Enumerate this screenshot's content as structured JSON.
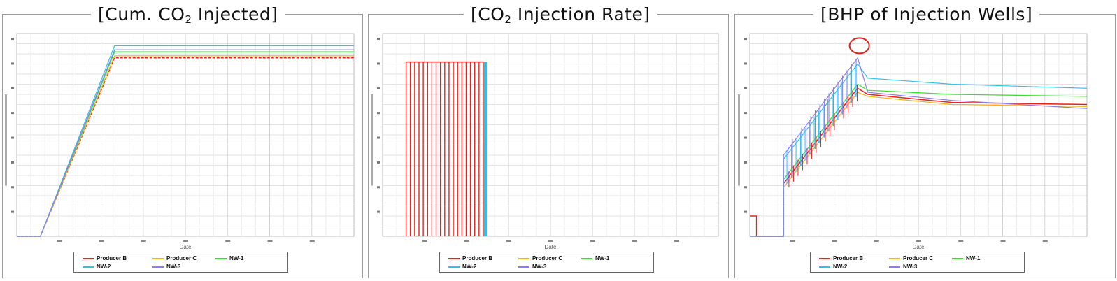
{
  "titles": [
    {
      "pre": "[Cum. CO",
      "sub": "2",
      "post": " Injected]"
    },
    {
      "pre": "[CO",
      "sub": "2",
      "post": " Injection Rate]"
    },
    {
      "pre": "[BHP of Injection Wells]",
      "sub": "",
      "post": ""
    }
  ],
  "colors": {
    "Producer B": "#e8231e",
    "Producer C": "#f7b21c",
    "NW-1": "#33e02a",
    "NW-2": "#2cc3ea",
    "NW-3": "#8a7fe8",
    "circle": "#e0211d"
  },
  "legend": {
    "items": [
      "Producer B",
      "Producer C",
      "NW-1",
      "NW-2",
      "NW-3"
    ]
  },
  "chart_data": [
    {
      "type": "line",
      "title": "[Cum. CO2 Injected]",
      "xlabel": "Date",
      "ylabel": "",
      "x_range": [
        0,
        100
      ],
      "y_range": [
        0,
        100
      ],
      "grid": true,
      "legend_position": "bottom",
      "series": [
        {
          "name": "Producer B",
          "points": [
            [
              0,
              0
            ],
            [
              7,
              0
            ],
            [
              29,
              88
            ],
            [
              100,
              88
            ]
          ]
        },
        {
          "name": "Producer C",
          "points": [
            [
              0,
              0
            ],
            [
              7,
              0
            ],
            [
              29,
              89
            ],
            [
              100,
              89
            ]
          ]
        },
        {
          "name": "NW-1",
          "points": [
            [
              0,
              0
            ],
            [
              7,
              0
            ],
            [
              29,
              91
            ],
            [
              100,
              91
            ]
          ]
        },
        {
          "name": "NW-2",
          "points": [
            [
              0,
              0
            ],
            [
              7,
              0
            ],
            [
              29,
              94
            ],
            [
              100,
              94
            ]
          ]
        },
        {
          "name": "NW-3",
          "points": [
            [
              0,
              0
            ],
            [
              7,
              0
            ],
            [
              29,
              92
            ],
            [
              100,
              92
            ]
          ]
        }
      ]
    },
    {
      "type": "bar",
      "title": "[CO2 Injection Rate]",
      "xlabel": "Date",
      "ylabel": "",
      "x_range": [
        0,
        100
      ],
      "y_range": [
        0,
        100
      ],
      "grid": true,
      "legend_position": "bottom",
      "pulse_start": 7,
      "pulse_end": 31,
      "pulse_count": 19,
      "pulse_value": 86,
      "series": [
        {
          "name": "Producer B",
          "values": [
            86
          ]
        },
        {
          "name": "Producer C",
          "values": [
            86
          ]
        },
        {
          "name": "NW-1",
          "values": [
            86
          ]
        },
        {
          "name": "NW-2",
          "values": [
            86
          ]
        },
        {
          "name": "NW-3",
          "values": [
            86
          ]
        }
      ]
    },
    {
      "type": "line",
      "title": "[BHP of Injection Wells]",
      "xlabel": "Date",
      "ylabel": "",
      "x_range": [
        0,
        100
      ],
      "y_range": [
        0,
        100
      ],
      "grid": true,
      "legend_position": "bottom",
      "series": [
        {
          "name": "Producer B",
          "points": [
            [
              0,
              10
            ],
            [
              2,
              10
            ],
            [
              2,
              0
            ],
            [
              10,
              0
            ],
            [
              10,
              26
            ],
            [
              32,
              73
            ],
            [
              35,
              70
            ],
            [
              60,
              66
            ],
            [
              100,
              65
            ]
          ]
        },
        {
          "name": "Producer C",
          "points": [
            [
              0,
              0
            ],
            [
              10,
              0
            ],
            [
              10,
              24
            ],
            [
              32,
              71
            ],
            [
              35,
              69
            ],
            [
              60,
              65
            ],
            [
              100,
              64
            ]
          ]
        },
        {
          "name": "NW-1",
          "points": [
            [
              0,
              0
            ],
            [
              10,
              0
            ],
            [
              10,
              28
            ],
            [
              32,
              75
            ],
            [
              35,
              72
            ],
            [
              60,
              70
            ],
            [
              100,
              69
            ]
          ]
        },
        {
          "name": "NW-2",
          "points": [
            [
              0,
              0
            ],
            [
              10,
              0
            ],
            [
              10,
              38
            ],
            [
              32,
              85
            ],
            [
              35,
              78
            ],
            [
              60,
              75
            ],
            [
              100,
              73
            ]
          ]
        },
        {
          "name": "NW-3",
          "points": [
            [
              0,
              0
            ],
            [
              10,
              0
            ],
            [
              10,
              40
            ],
            [
              32,
              88
            ],
            [
              35,
              71
            ],
            [
              60,
              67
            ],
            [
              100,
              63
            ]
          ]
        }
      ]
    }
  ]
}
